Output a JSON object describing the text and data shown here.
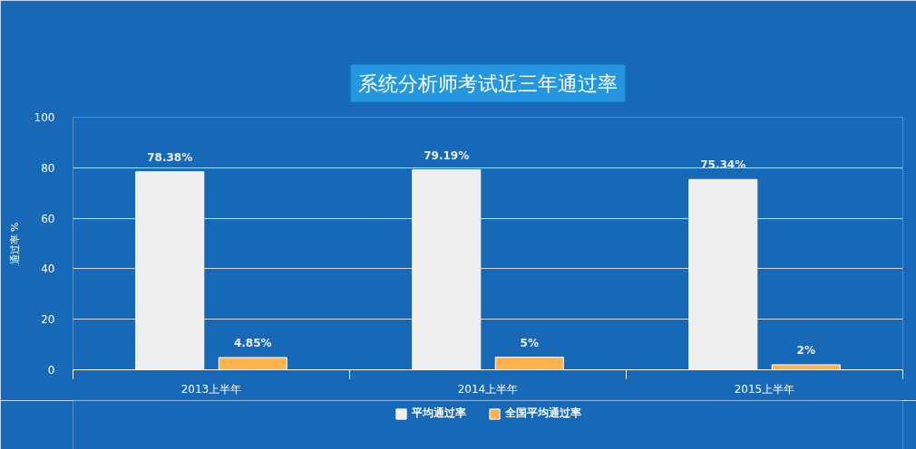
{
  "chart_data": {
    "type": "bar",
    "title": "系统分析师考试近三年通过率",
    "ylabel": "通过率 %",
    "categories": [
      "2013上半年",
      "2014上半年",
      "2015上半年"
    ],
    "series": [
      {
        "name": "平均通过率",
        "color": "#eeeeee",
        "values": [
          78.38,
          79.19,
          75.34
        ],
        "value_labels": [
          "78.38%",
          "79.19%",
          "75.34%"
        ]
      },
      {
        "name": "全国平均通过率",
        "color": "#ffb24a",
        "values": [
          4.85,
          5,
          2
        ],
        "value_labels": [
          "4.85%",
          "5%",
          "2%"
        ]
      }
    ],
    "ylim": [
      0,
      100
    ],
    "yticks": [
      0,
      20,
      40,
      60,
      80,
      100
    ],
    "grid": "y",
    "legend": "bottom"
  }
}
